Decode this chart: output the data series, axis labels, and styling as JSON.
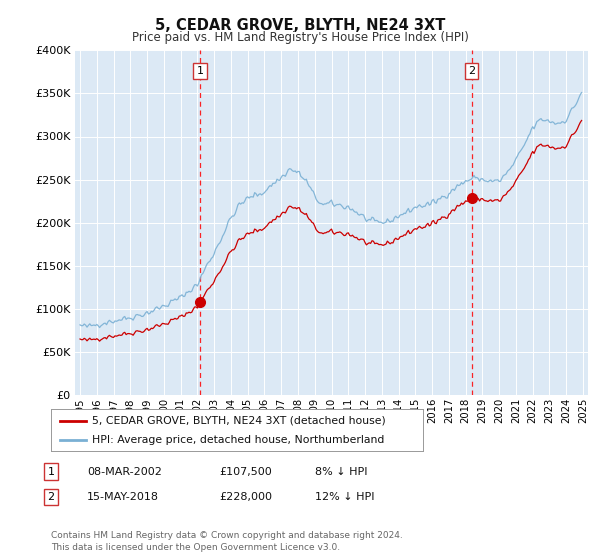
{
  "title": "5, CEDAR GROVE, BLYTH, NE24 3XT",
  "subtitle": "Price paid vs. HM Land Registry's House Price Index (HPI)",
  "bg_color": "#dce9f5",
  "red_color": "#cc0000",
  "blue_color": "#7ab0d4",
  "ylim": [
    0,
    400000
  ],
  "yticks": [
    0,
    50000,
    100000,
    150000,
    200000,
    250000,
    300000,
    350000,
    400000
  ],
  "ytick_labels": [
    "£0",
    "£50K",
    "£100K",
    "£150K",
    "£200K",
    "£250K",
    "£300K",
    "£350K",
    "£400K"
  ],
  "sale1_date_x": 2002.16,
  "sale1_price": 107500,
  "sale2_date_x": 2018.37,
  "sale2_price": 228000,
  "legend_line1": "5, CEDAR GROVE, BLYTH, NE24 3XT (detached house)",
  "legend_line2": "HPI: Average price, detached house, Northumberland",
  "footnote": "Contains HM Land Registry data © Crown copyright and database right 2024.\nThis data is licensed under the Open Government Licence v3.0.",
  "xlim_left": 1994.7,
  "xlim_right": 2025.3
}
